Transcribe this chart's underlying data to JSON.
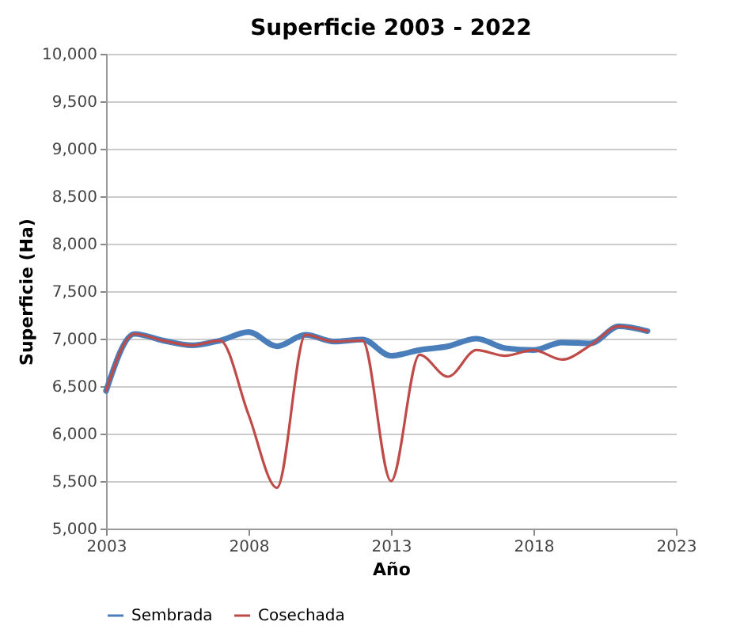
{
  "chart_data": {
    "type": "line",
    "title": "Superficie 2003 - 2022",
    "xlabel": "Año",
    "ylabel": "Superficie (Ha)",
    "x": [
      2003,
      2004,
      2005,
      2006,
      2007,
      2008,
      2009,
      2010,
      2011,
      2012,
      2013,
      2014,
      2015,
      2016,
      2017,
      2018,
      2019,
      2020,
      2021,
      2022
    ],
    "series": [
      {
        "name": "Sembrada",
        "color": "#4a7ebb",
        "values": [
          6450,
          7050,
          6980,
          6930,
          6980,
          7070,
          6920,
          7040,
          6970,
          6990,
          6820,
          6880,
          6920,
          7000,
          6900,
          6880,
          6960,
          6950,
          7130,
          7080
        ]
      },
      {
        "name": "Cosechada",
        "color": "#be4b48",
        "values": [
          6450,
          7050,
          6980,
          6930,
          6980,
          6200,
          5430,
          7040,
          6970,
          6980,
          5500,
          6830,
          6600,
          6880,
          6820,
          6880,
          6780,
          6930,
          7130,
          7080
        ]
      }
    ],
    "xlim": [
      2003,
      2023
    ],
    "xticks": [
      2003,
      2008,
      2013,
      2018,
      2023
    ],
    "ylim": [
      5000,
      10000
    ],
    "yticks": [
      {
        "value": 5000,
        "label": "5,000"
      },
      {
        "value": 5500,
        "label": "5,500"
      },
      {
        "value": 6000,
        "label": "6,000"
      },
      {
        "value": 6500,
        "label": "6,500"
      },
      {
        "value": 7000,
        "label": "7,000"
      },
      {
        "value": 7500,
        "label": "7,500"
      },
      {
        "value": 8000,
        "label": "8,000"
      },
      {
        "value": 8500,
        "label": "8,500"
      },
      {
        "value": 9000,
        "label": "9,000"
      },
      {
        "value": 9500,
        "label": "9,500"
      },
      {
        "value": 10000,
        "label": "10,000"
      }
    ],
    "grid": "y",
    "legend": "bottom",
    "marker": "none",
    "line_style": "solid"
  }
}
